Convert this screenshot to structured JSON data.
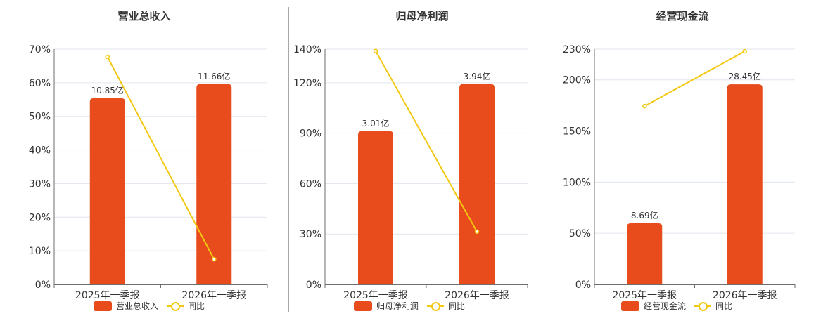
{
  "colors": {
    "bar": "#e84c1c",
    "line": "#f2c811",
    "grid": "#e0e6ee",
    "axis": "#6e6e6e"
  },
  "chart_data": [
    {
      "type": "bar+line",
      "title": "营业总收入",
      "categories": [
        "2025年一季报",
        "2026年一季报"
      ],
      "series": [
        {
          "name": "营业总收入",
          "type": "bar",
          "values": [
            10.85,
            11.66
          ],
          "labels": [
            "10.85亿",
            "11.66亿"
          ],
          "axis_position_pct": [
            55.4,
            59.6
          ]
        },
        {
          "name": "同比",
          "type": "line",
          "values": [
            67.7,
            7.5
          ],
          "unit": "%"
        }
      ],
      "yticks": [
        "0%",
        "10%",
        "20%",
        "30%",
        "40%",
        "50%",
        "60%",
        "70%"
      ],
      "ylim": [
        0,
        70
      ],
      "grid": true,
      "legend_position": "bottom"
    },
    {
      "type": "bar+line",
      "title": "归母净利润",
      "categories": [
        "2025年一季报",
        "2026年一季报"
      ],
      "series": [
        {
          "name": "归母净利润",
          "type": "bar",
          "values": [
            3.01,
            3.94
          ],
          "labels": [
            "3.01亿",
            "3.94亿"
          ],
          "axis_position_pct": [
            91.2,
            119.2
          ]
        },
        {
          "name": "同比",
          "type": "line",
          "values": [
            138.9,
            31.4
          ],
          "unit": "%"
        }
      ],
      "yticks": [
        "0%",
        "30%",
        "60%",
        "90%",
        "120%",
        "140%"
      ],
      "ylim": [
        0,
        140
      ],
      "grid": true,
      "legend_position": "bottom"
    },
    {
      "type": "bar+line",
      "title": "经营现金流",
      "categories": [
        "2025年一季报",
        "2026年一季报"
      ],
      "series": [
        {
          "name": "经营现金流",
          "type": "bar",
          "values": [
            8.69,
            28.45
          ],
          "labels": [
            "8.69亿",
            "28.45亿"
          ],
          "axis_position_pct": [
            59.7,
            195.6
          ]
        },
        {
          "name": "同比",
          "type": "line",
          "values": [
            174.3,
            227.9
          ],
          "unit": "%"
        }
      ],
      "yticks": [
        "0%",
        "50%",
        "100%",
        "150%",
        "200%",
        "230%"
      ],
      "ylim": [
        0,
        230
      ],
      "grid": true,
      "legend_position": "bottom"
    }
  ]
}
